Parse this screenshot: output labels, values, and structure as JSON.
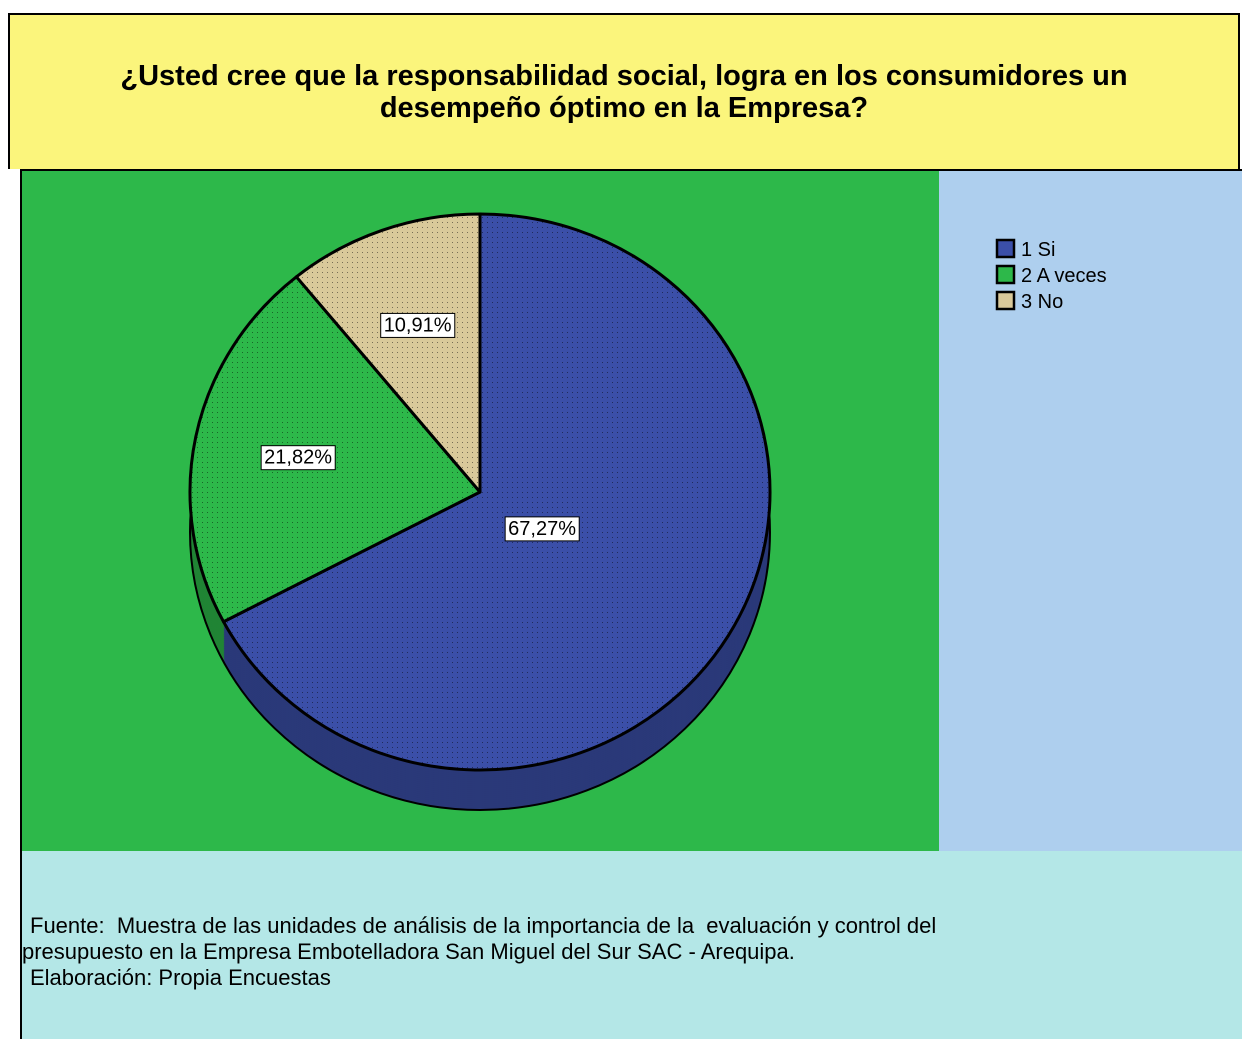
{
  "chart_data": {
    "type": "pie",
    "title": "¿Usted cree que la responsabilidad social, logra en los consumidores un desempeño óptimo en la Empresa?",
    "categories": [
      "1 Si",
      "2 A veces",
      "3 No"
    ],
    "values": [
      67.27,
      21.82,
      10.91
    ],
    "value_labels": [
      "67,27%",
      "21,82%",
      "10,91%"
    ],
    "colors": [
      "#3b4fa8",
      "#2db84a",
      "#d9c99a"
    ],
    "legend": "upper right",
    "source": [
      "Fuente:  Muestra de las unidades de análisis de la importancia de la  evaluación y control del",
      "presupuesto en la Empresa Embotelladora San Miguel del Sur SAC - Arequipa.",
      "Elaboración: Propia Encuestas"
    ]
  }
}
